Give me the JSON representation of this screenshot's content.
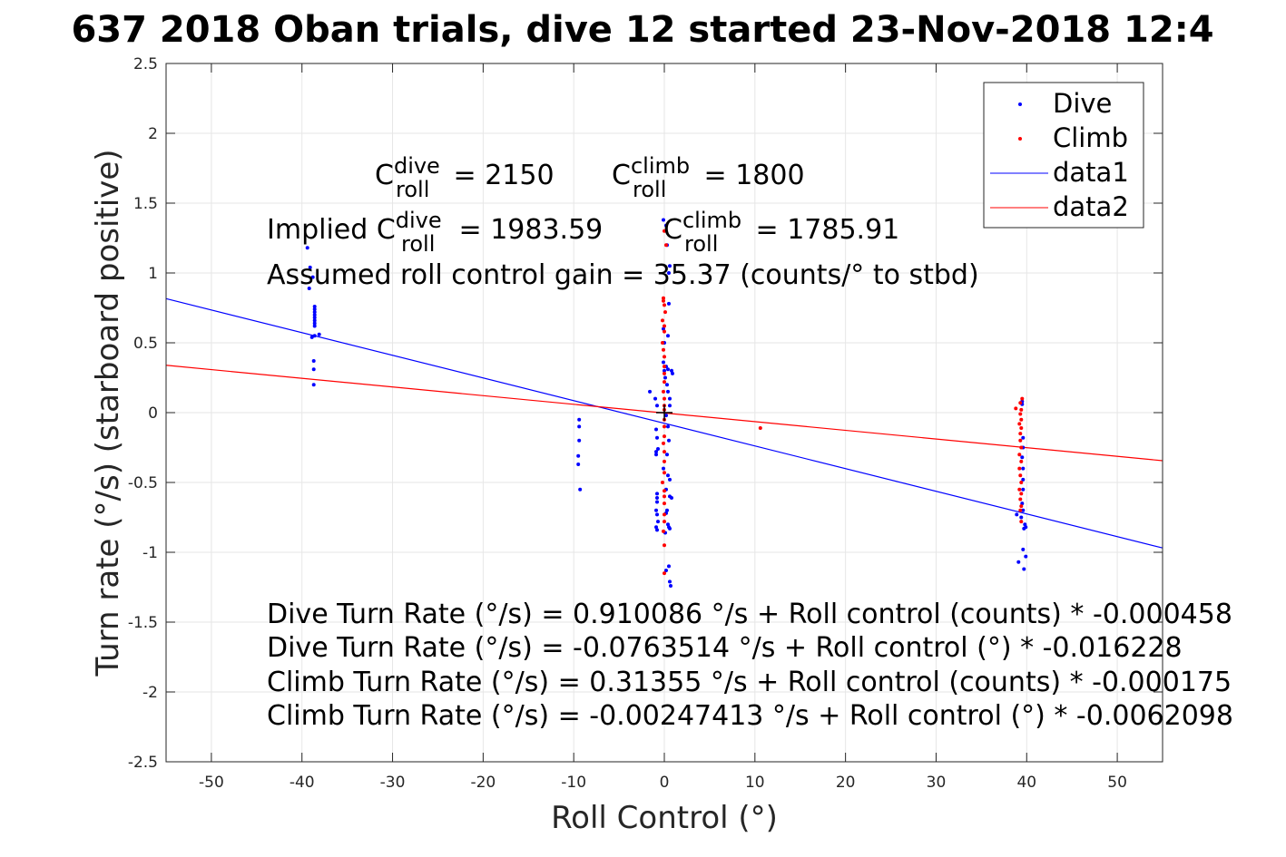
{
  "chart_data": {
    "type": "scatter",
    "title": "637 2018 Oban trials, dive 12 started 23-Nov-2018 12:4",
    "xlabel": "Roll Control (°)",
    "ylabel": "Turn rate (°/s) (starboard positive)",
    "xlim": [
      -55,
      55
    ],
    "ylim": [
      -2.5,
      2.5
    ],
    "xticks": [
      -50,
      -40,
      -30,
      -20,
      -10,
      0,
      10,
      20,
      30,
      40,
      50
    ],
    "yticks": [
      -2.5,
      -2,
      -1.5,
      -1,
      -0.5,
      0,
      0.5,
      1,
      1.5,
      2,
      2.5
    ],
    "grid": true,
    "legend_position": "top-right",
    "colors": {
      "dive": "#0000ff",
      "climb": "#ff0000",
      "center_mark": "#000000"
    },
    "series": [
      {
        "name": "Dive",
        "mode": "markers",
        "color": "#0000ff",
        "points": [
          [
            -39.4,
            1.18
          ],
          [
            -39.1,
            1.04
          ],
          [
            -39.2,
            0.89
          ],
          [
            -38.8,
            0.97
          ],
          [
            -38.6,
            0.76
          ],
          [
            -38.6,
            0.74
          ],
          [
            -38.6,
            0.72
          ],
          [
            -38.6,
            0.7
          ],
          [
            -38.6,
            0.68
          ],
          [
            -38.6,
            0.66
          ],
          [
            -38.6,
            0.64
          ],
          [
            -38.6,
            0.62
          ],
          [
            -38.6,
            0.55
          ],
          [
            -38.9,
            0.54
          ],
          [
            -38.1,
            0.56
          ],
          [
            -38.7,
            0.37
          ],
          [
            -38.7,
            0.31
          ],
          [
            -38.7,
            0.2
          ],
          [
            -9.4,
            -0.05
          ],
          [
            -9.4,
            -0.1
          ],
          [
            -9.4,
            -0.2
          ],
          [
            -9.5,
            -0.31
          ],
          [
            -9.5,
            -0.37
          ],
          [
            -9.3,
            -0.55
          ],
          [
            -1.6,
            0.15
          ],
          [
            -1.0,
            0.1
          ],
          [
            -0.8,
            0.05
          ],
          [
            -0.9,
            -0.12
          ],
          [
            -0.8,
            -0.18
          ],
          [
            -0.9,
            -0.28
          ],
          [
            -0.9,
            -0.3
          ],
          [
            -0.7,
            -0.26
          ],
          [
            -0.8,
            -0.58
          ],
          [
            -0.8,
            -0.61
          ],
          [
            -0.8,
            -0.64
          ],
          [
            -0.9,
            -0.7
          ],
          [
            -0.8,
            -0.73
          ],
          [
            -0.7,
            -0.78
          ],
          [
            -0.9,
            -0.82
          ],
          [
            -0.8,
            -0.84
          ],
          [
            -0.1,
            1.38
          ],
          [
            0.2,
            1.34
          ],
          [
            0.3,
            1.2
          ],
          [
            0.6,
            1.05
          ],
          [
            0.5,
            1.0
          ],
          [
            0.5,
            0.78
          ],
          [
            -0.1,
            0.6
          ],
          [
            0.4,
            0.55
          ],
          [
            0.0,
            0.5
          ],
          [
            -0.1,
            0.36
          ],
          [
            0.0,
            0.3
          ],
          [
            0.2,
            0.33
          ],
          [
            0.4,
            0.31
          ],
          [
            0.8,
            0.3
          ],
          [
            0.9,
            0.28
          ],
          [
            0.1,
            0.25
          ],
          [
            0.3,
            0.2
          ],
          [
            0.4,
            0.15
          ],
          [
            0.6,
            0.1
          ],
          [
            0.6,
            0.05
          ],
          [
            0.2,
            -0.02
          ],
          [
            0.4,
            -0.1
          ],
          [
            0.5,
            -0.2
          ],
          [
            0.3,
            -0.3
          ],
          [
            -0.1,
            -0.4
          ],
          [
            0.4,
            -0.45
          ],
          [
            0.6,
            -0.48
          ],
          [
            0.2,
            -0.55
          ],
          [
            0.6,
            -0.6
          ],
          [
            0.8,
            -0.61
          ],
          [
            0.3,
            -0.7
          ],
          [
            0.2,
            -0.72
          ],
          [
            0.4,
            -0.8
          ],
          [
            0.5,
            -0.82
          ],
          [
            0.6,
            -0.83
          ],
          [
            0.1,
            -0.86
          ],
          [
            0.5,
            -1.1
          ],
          [
            0.6,
            -1.21
          ],
          [
            0.2,
            -1.13
          ],
          [
            0.7,
            -1.24
          ],
          [
            39.5,
            0.08
          ],
          [
            39.5,
            0.06
          ],
          [
            39.6,
            -0.18
          ],
          [
            39.6,
            -0.25
          ],
          [
            39.5,
            -0.32
          ],
          [
            39.6,
            -0.4
          ],
          [
            39.6,
            -0.48
          ],
          [
            39.6,
            -0.55
          ],
          [
            39.5,
            -0.65
          ],
          [
            39.6,
            -0.7
          ],
          [
            38.9,
            -0.73
          ],
          [
            39.4,
            -0.75
          ],
          [
            39.8,
            -0.8
          ],
          [
            39.9,
            -0.82
          ],
          [
            39.7,
            -0.83
          ],
          [
            39.6,
            -0.98
          ],
          [
            39.9,
            -1.03
          ],
          [
            39.1,
            -1.07
          ],
          [
            39.7,
            -1.12
          ]
        ]
      },
      {
        "name": "Climb",
        "mode": "markers",
        "color": "#ff0000",
        "points": [
          [
            0.0,
            1.3
          ],
          [
            0.2,
            1.2
          ],
          [
            -0.1,
            0.82
          ],
          [
            -0.1,
            0.8
          ],
          [
            0.0,
            0.77
          ],
          [
            0.1,
            0.72
          ],
          [
            -0.2,
            0.66
          ],
          [
            0.0,
            0.62
          ],
          [
            0.0,
            0.58
          ],
          [
            -0.2,
            0.5
          ],
          [
            -0.1,
            0.45
          ],
          [
            0.0,
            0.4
          ],
          [
            0.0,
            0.33
          ],
          [
            0.0,
            0.28
          ],
          [
            0.0,
            0.22
          ],
          [
            -0.1,
            0.15
          ],
          [
            0.0,
            0.1
          ],
          [
            0.0,
            0.05
          ],
          [
            0.0,
            0.02
          ],
          [
            0.0,
            -0.05
          ],
          [
            0.0,
            -0.1
          ],
          [
            0.0,
            -0.17
          ],
          [
            -0.1,
            -0.22
          ],
          [
            0.0,
            -0.28
          ],
          [
            0.0,
            -0.35
          ],
          [
            0.0,
            -0.43
          ],
          [
            -0.2,
            -0.5
          ],
          [
            0.0,
            -0.56
          ],
          [
            0.0,
            -0.6
          ],
          [
            0.0,
            -0.65
          ],
          [
            0.0,
            -0.73
          ],
          [
            0.0,
            -0.78
          ],
          [
            -0.1,
            -0.85
          ],
          [
            0.0,
            -0.95
          ],
          [
            0.0,
            -1.15
          ],
          [
            10.6,
            -0.11
          ],
          [
            38.8,
            0.03
          ],
          [
            39.5,
            0.1
          ],
          [
            39.3,
            0.07
          ],
          [
            39.4,
            0.02
          ],
          [
            39.3,
            -0.01
          ],
          [
            39.4,
            -0.05
          ],
          [
            39.2,
            -0.08
          ],
          [
            39.4,
            -0.11
          ],
          [
            39.3,
            -0.15
          ],
          [
            39.3,
            -0.2
          ],
          [
            39.4,
            -0.25
          ],
          [
            39.2,
            -0.3
          ],
          [
            39.4,
            -0.35
          ],
          [
            39.2,
            -0.4
          ],
          [
            39.3,
            -0.45
          ],
          [
            39.4,
            -0.5
          ],
          [
            39.2,
            -0.55
          ],
          [
            39.4,
            -0.58
          ],
          [
            39.3,
            -0.62
          ],
          [
            39.4,
            -0.67
          ],
          [
            39.3,
            -0.7
          ],
          [
            39.4,
            -0.78
          ]
        ]
      },
      {
        "name": "data1",
        "mode": "line",
        "color": "#0000ff",
        "intercept": -0.0763514,
        "slope": -0.016228
      },
      {
        "name": "data2",
        "mode": "line",
        "color": "#ff0000",
        "intercept": -0.00247413,
        "slope": -0.0062098
      }
    ],
    "center_mark": [
      0,
      0
    ]
  },
  "annotations": {
    "c_roll_dive": {
      "base": "C",
      "sup": "dive",
      "sub": "roll",
      "value": " = 2150"
    },
    "c_roll_climb": {
      "base": "C",
      "sup": "climb",
      "sub": "roll",
      "value": " = 1800"
    },
    "implied_dive": {
      "prefix": "Implied C",
      "sup": "dive",
      "sub": "roll",
      "value": " = 1983.59"
    },
    "implied_climb": {
      "base": "C",
      "sup": "climb",
      "sub": "roll",
      "value": " = 1785.91"
    },
    "gain": "Assumed roll control gain = 35.37 (counts/° to stbd)",
    "eq1": "Dive Turn Rate (°/s) = 0.910086 °/s + Roll control (counts) * -0.000458",
    "eq2": "Dive Turn Rate (°/s) = -0.0763514 °/s + Roll control (°) * -0.016228",
    "eq3": "Climb Turn Rate (°/s) = 0.31355 °/s + Roll control (counts) * -0.000175",
    "eq4": "Climb Turn Rate (°/s) = -0.00247413 °/s + Roll control (°) * -0.0062098"
  }
}
